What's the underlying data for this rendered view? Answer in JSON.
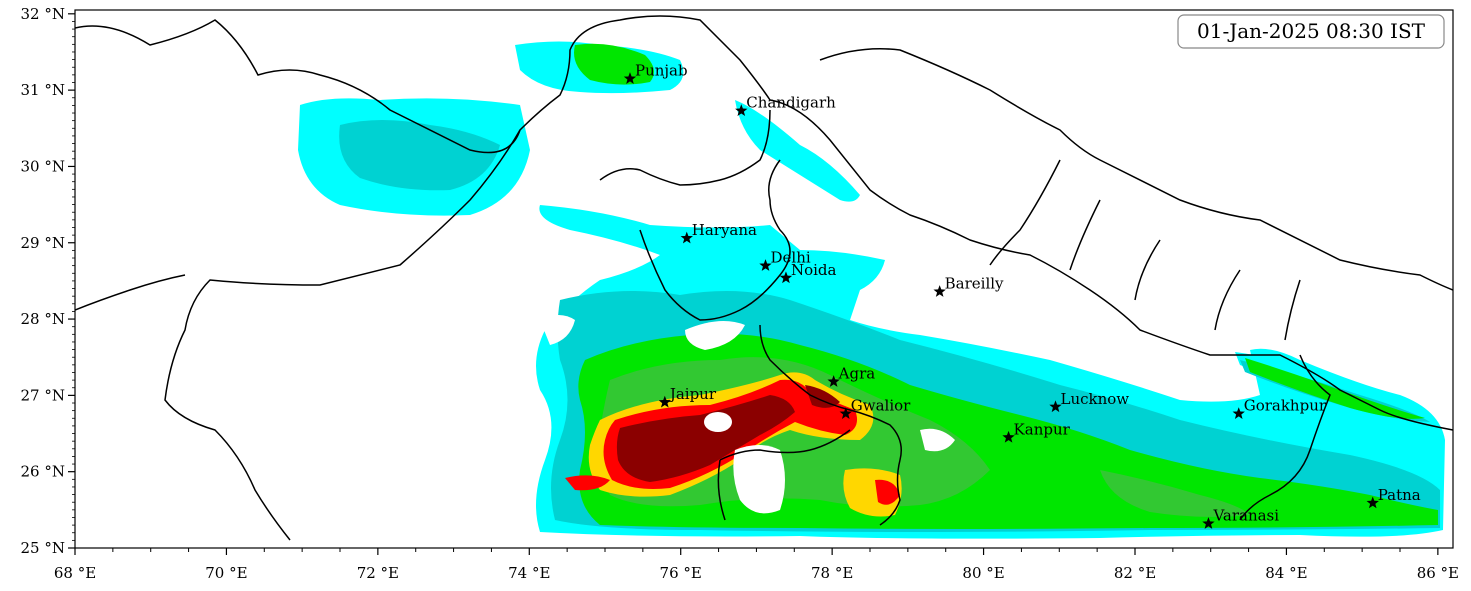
{
  "timestamp": "01-Jan-2025 08:30 IST",
  "x_ticks": [
    {
      "lon": 68,
      "label": "68 °E"
    },
    {
      "lon": 70,
      "label": "70 °E"
    },
    {
      "lon": 72,
      "label": "72 °E"
    },
    {
      "lon": 74,
      "label": "74 °E"
    },
    {
      "lon": 76,
      "label": "76 °E"
    },
    {
      "lon": 78,
      "label": "78 °E"
    },
    {
      "lon": 80,
      "label": "80 °E"
    },
    {
      "lon": 82,
      "label": "82 °E"
    },
    {
      "lon": 84,
      "label": "84 °E"
    },
    {
      "lon": 86,
      "label": "86 °E"
    }
  ],
  "y_ticks": [
    {
      "lat": 25,
      "label": "25 °N"
    },
    {
      "lat": 26,
      "label": "26 °N"
    },
    {
      "lat": 27,
      "label": "27 °N"
    },
    {
      "lat": 28,
      "label": "28 °N"
    },
    {
      "lat": 29,
      "label": "29 °N"
    },
    {
      "lat": 30,
      "label": "30 °N"
    },
    {
      "lat": 31,
      "label": "31 °N"
    },
    {
      "lat": 32,
      "label": "32 °N"
    }
  ],
  "cities": [
    {
      "name": "Punjab",
      "lon": 75.33,
      "lat": 31.15
    },
    {
      "name": "Chandigarh",
      "lon": 76.8,
      "lat": 30.73
    },
    {
      "name": "Haryana",
      "lon": 76.08,
      "lat": 29.06
    },
    {
      "name": "Delhi",
      "lon": 77.12,
      "lat": 28.7
    },
    {
      "name": "Noida",
      "lon": 77.39,
      "lat": 28.54
    },
    {
      "name": "Bareilly",
      "lon": 79.42,
      "lat": 28.36
    },
    {
      "name": "Agra",
      "lon": 78.02,
      "lat": 27.18
    },
    {
      "name": "Jaipur",
      "lon": 75.79,
      "lat": 26.91
    },
    {
      "name": "Gwalior",
      "lon": 78.18,
      "lat": 26.76
    },
    {
      "name": "Lucknow",
      "lon": 80.95,
      "lat": 26.85
    },
    {
      "name": "Kanpur",
      "lon": 80.33,
      "lat": 26.45
    },
    {
      "name": "Gorakhpur",
      "lon": 83.37,
      "lat": 26.76
    },
    {
      "name": "Varanasi",
      "lon": 82.97,
      "lat": 25.32
    },
    {
      "name": "Patna",
      "lon": 85.14,
      "lat": 25.59
    }
  ],
  "fog_levels": [
    {
      "level": 1,
      "color": "#00ffff"
    },
    {
      "level": 2,
      "color": "#00d2d2"
    },
    {
      "level": 3,
      "color": "#00e600"
    },
    {
      "level": 4,
      "color": "#32c832"
    },
    {
      "level": 5,
      "color": "#ffd700"
    },
    {
      "level": 6,
      "color": "#ff0000"
    },
    {
      "level": 7,
      "color": "#8b0000"
    }
  ]
}
